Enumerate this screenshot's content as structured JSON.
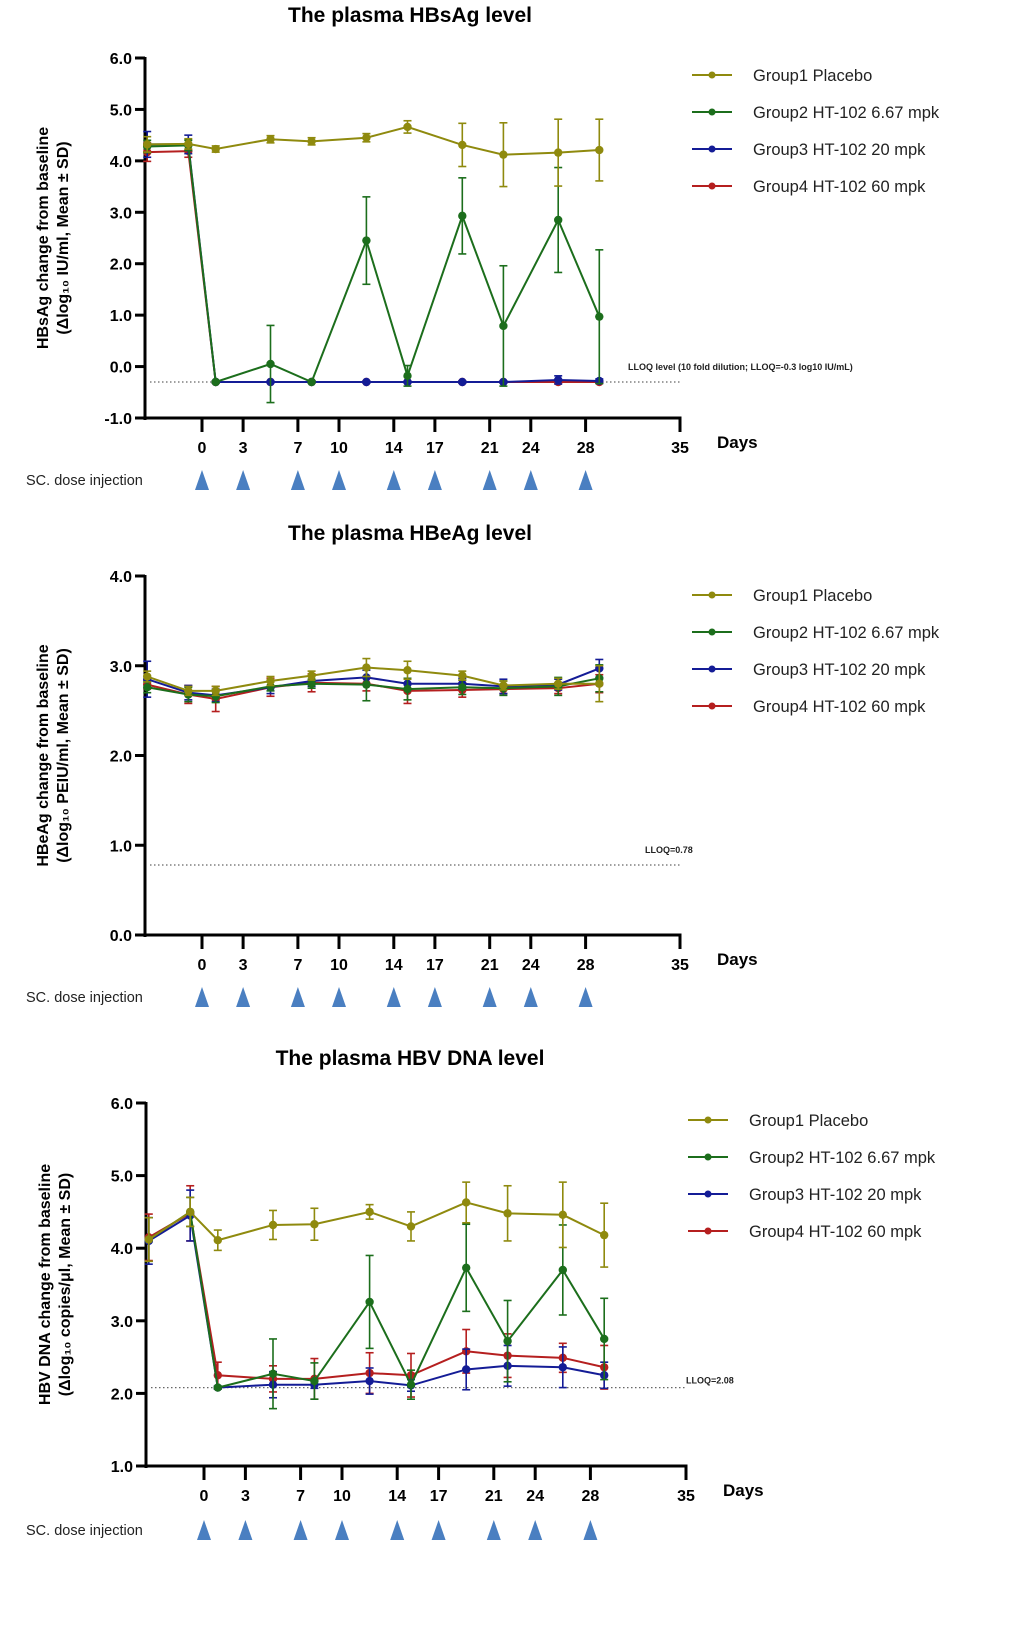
{
  "series_meta": [
    {
      "name": "Group1 Placebo",
      "color": "#8f8a0e"
    },
    {
      "name": "Group2 HT-102 6.67 mpk",
      "color": "#1c6e1c"
    },
    {
      "name": "Group3 HT-102 20 mpk",
      "color": "#141c96"
    },
    {
      "name": "Group4 HT-102 60 mpk",
      "color": "#b51f1f"
    }
  ],
  "dose_injection_label": "SC. dose injection",
  "dose_days": [
    0,
    3,
    7,
    10,
    14,
    17,
    21,
    24,
    28
  ],
  "injection_marker_color": "#4a7fc1",
  "chart_data": [
    {
      "type": "line",
      "title": "The plasma HBsAg level",
      "xlabel": "Days",
      "ylabel_line1": "HBsAg change from baseline",
      "ylabel_line2": "(Δlog₁₀ IU/ml, Mean ± SD)",
      "ylim": [
        -1.0,
        6.0
      ],
      "yticks": [
        "-1.0",
        "0.0",
        "1.0",
        "2.0",
        "3.0",
        "4.0",
        "5.0",
        "6.0"
      ],
      "xlim": [
        -4,
        35
      ],
      "xticks": [
        "0",
        "3",
        "7",
        "10",
        "14",
        "17",
        "21",
        "24",
        "28",
        "35"
      ],
      "legend_position": "top-right",
      "lloq": {
        "value": -0.3,
        "label": "LLOQ level (10 fold dilution; LLOQ=-0.3 log10 IU/mL)"
      },
      "x": [
        -4,
        -1,
        1,
        5,
        8,
        12,
        15,
        19,
        22,
        26,
        29
      ],
      "series": [
        {
          "name": "Group1 Placebo",
          "values": [
            4.32,
            4.33,
            4.23,
            4.42,
            4.38,
            4.45,
            4.66,
            4.31,
            4.12,
            4.16,
            4.21
          ],
          "sd": [
            0.15,
            0.1,
            0.06,
            0.07,
            0.07,
            0.08,
            0.12,
            0.42,
            0.62,
            0.65,
            0.6
          ]
        },
        {
          "name": "Group2 HT-102 6.67 mpk",
          "values": [
            4.28,
            4.3,
            -0.3,
            0.05,
            -0.3,
            2.45,
            -0.18,
            2.93,
            0.79,
            2.85,
            0.97
          ],
          "sd": [
            0.12,
            0.1,
            0.02,
            0.75,
            0.02,
            0.85,
            0.2,
            0.74,
            1.17,
            1.02,
            1.3
          ]
        },
        {
          "name": "Group3 HT-102 20 mpk",
          "values": [
            4.32,
            4.32,
            -0.3,
            -0.3,
            -0.3,
            -0.3,
            -0.3,
            -0.3,
            -0.3,
            -0.26,
            -0.28
          ],
          "sd": [
            0.25,
            0.18,
            0.02,
            0.02,
            0.02,
            0.02,
            0.02,
            0.02,
            0.02,
            0.08,
            0.04
          ]
        },
        {
          "name": "Group4 HT-102 60 mpk",
          "values": [
            4.17,
            4.19,
            -0.3,
            -0.3,
            -0.3,
            -0.3,
            -0.3,
            -0.3,
            -0.3,
            -0.3,
            -0.3
          ],
          "sd": [
            0.18,
            0.12,
            0.02,
            0.02,
            0.02,
            0.02,
            0.02,
            0.02,
            0.02,
            0.02,
            0.02
          ]
        }
      ]
    },
    {
      "type": "line",
      "title": "The plasma HBeAg level",
      "xlabel": "Days",
      "ylabel_line1": "HBeAg change from baseline",
      "ylabel_line2": "(Δlog₁₀ PEIU/ml, Mean ± SD)",
      "ylim": [
        0.0,
        4.0
      ],
      "yticks": [
        "0.0",
        "1.0",
        "2.0",
        "3.0",
        "4.0"
      ],
      "xlim": [
        -4,
        35
      ],
      "xticks": [
        "0",
        "3",
        "7",
        "10",
        "14",
        "17",
        "21",
        "24",
        "28",
        "35"
      ],
      "legend_position": "top-right",
      "lloq": {
        "value": 0.78,
        "label": "LLOQ=0.78"
      },
      "x": [
        -4,
        -1,
        1,
        5,
        8,
        12,
        15,
        19,
        22,
        26,
        29
      ],
      "series": [
        {
          "name": "Group1 Placebo",
          "values": [
            2.88,
            2.72,
            2.72,
            2.83,
            2.89,
            2.98,
            2.95,
            2.89,
            2.78,
            2.8,
            2.8
          ],
          "sd": [
            0.06,
            0.05,
            0.05,
            0.05,
            0.05,
            0.1,
            0.1,
            0.05,
            0.05,
            0.06,
            0.2
          ]
        },
        {
          "name": "Group2 HT-102 6.67 mpk",
          "values": [
            2.76,
            2.68,
            2.66,
            2.77,
            2.8,
            2.79,
            2.74,
            2.76,
            2.75,
            2.77,
            2.86
          ],
          "sd": [
            0.06,
            0.08,
            0.07,
            0.05,
            0.05,
            0.18,
            0.12,
            0.08,
            0.08,
            0.1,
            0.15
          ]
        },
        {
          "name": "Group3 HT-102 20 mpk",
          "values": [
            2.85,
            2.7,
            2.67,
            2.76,
            2.83,
            2.87,
            2.8,
            2.8,
            2.77,
            2.79,
            2.97
          ],
          "sd": [
            0.2,
            0.08,
            0.07,
            0.07,
            0.06,
            0.08,
            0.06,
            0.06,
            0.08,
            0.06,
            0.1
          ]
        },
        {
          "name": "Group4 HT-102 60 mpk",
          "values": [
            2.79,
            2.68,
            2.63,
            2.76,
            2.81,
            2.8,
            2.72,
            2.73,
            2.74,
            2.75,
            2.8
          ],
          "sd": [
            0.05,
            0.1,
            0.14,
            0.1,
            0.1,
            0.08,
            0.14,
            0.08,
            0.05,
            0.06,
            0.1
          ]
        }
      ]
    },
    {
      "type": "line",
      "title": "The plasma HBV DNA level",
      "xlabel": "Days",
      "ylabel_line1": "HBV DNA change from baseline",
      "ylabel_line2": "(Δlog₁₀ copies/μl, Mean ± SD)",
      "ylim": [
        1.0,
        6.0
      ],
      "yticks": [
        "1.0",
        "2.0",
        "3.0",
        "4.0",
        "5.0",
        "6.0"
      ],
      "xlim": [
        -4,
        35
      ],
      "xticks": [
        "0",
        "3",
        "7",
        "10",
        "14",
        "17",
        "21",
        "24",
        "28",
        "35"
      ],
      "legend_position": "top-right",
      "lloq": {
        "value": 2.08,
        "label": "LLOQ=2.08"
      },
      "x": [
        -4,
        -1,
        1,
        5,
        8,
        12,
        15,
        19,
        22,
        26,
        29
      ],
      "series": [
        {
          "name": "Group1 Placebo",
          "values": [
            4.12,
            4.5,
            4.11,
            4.32,
            4.33,
            4.5,
            4.3,
            4.63,
            4.48,
            4.46,
            4.18
          ],
          "sd": [
            0.3,
            0.2,
            0.14,
            0.2,
            0.22,
            0.1,
            0.2,
            0.28,
            0.38,
            0.45,
            0.44
          ]
        },
        {
          "name": "Group2 HT-102 6.67 mpk",
          "values": [
            4.12,
            4.5,
            2.08,
            2.27,
            2.17,
            3.26,
            2.12,
            3.73,
            2.72,
            3.7,
            2.75
          ],
          "sd": [
            0.3,
            0.2,
            0.02,
            0.48,
            0.25,
            0.64,
            0.2,
            0.6,
            0.56,
            0.62,
            0.56
          ]
        },
        {
          "name": "Group3 HT-102 20 mpk",
          "values": [
            4.1,
            4.45,
            2.08,
            2.12,
            2.12,
            2.17,
            2.11,
            2.33,
            2.38,
            2.36,
            2.25
          ],
          "sd": [
            0.32,
            0.35,
            0.02,
            0.18,
            0.05,
            0.18,
            0.08,
            0.28,
            0.28,
            0.28,
            0.18
          ]
        },
        {
          "name": "Group4 HT-102 60 mpk",
          "values": [
            4.15,
            4.48,
            2.25,
            2.2,
            2.2,
            2.28,
            2.25,
            2.58,
            2.52,
            2.49,
            2.36
          ],
          "sd": [
            0.32,
            0.38,
            0.18,
            0.18,
            0.28,
            0.28,
            0.3,
            0.3,
            0.3,
            0.2,
            0.3
          ]
        }
      ]
    }
  ]
}
